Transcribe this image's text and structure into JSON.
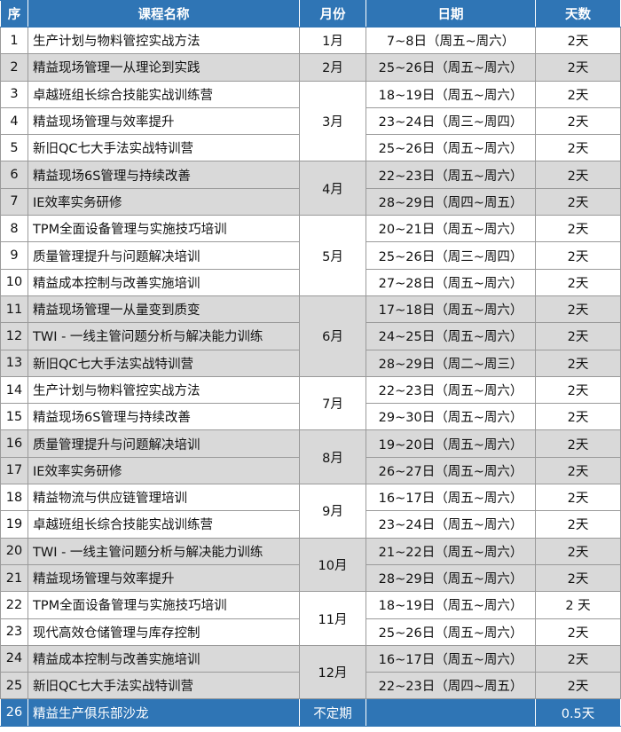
{
  "colors": {
    "header": "#2f75b5",
    "alt_row": "#d9d9d9",
    "highlight_row": "#2f75b5"
  },
  "header": {
    "num": "序",
    "name": "课程名称",
    "month": "月份",
    "date": "日期",
    "days": "天数"
  },
  "months": [
    {
      "label": "1月",
      "span": 1,
      "gray": false
    },
    {
      "label": "2月",
      "span": 1,
      "gray": true
    },
    {
      "label": "3月",
      "span": 3,
      "gray": false
    },
    {
      "label": "4月",
      "span": 2,
      "gray": true
    },
    {
      "label": "5月",
      "span": 3,
      "gray": false
    },
    {
      "label": "6月",
      "span": 3,
      "gray": true
    },
    {
      "label": "7月",
      "span": 2,
      "gray": false
    },
    {
      "label": "8月",
      "span": 2,
      "gray": true
    },
    {
      "label": "9月",
      "span": 2,
      "gray": false
    },
    {
      "label": "10月",
      "span": 2,
      "gray": true
    },
    {
      "label": "11月",
      "span": 2,
      "gray": false
    },
    {
      "label": "12月",
      "span": 2,
      "gray": true
    },
    {
      "label": "不定期",
      "span": 1,
      "gray": false
    }
  ],
  "rows": [
    {
      "num": "1",
      "name": "生产计划与物料管控实战方法",
      "date": "7~8日（周五~周六）",
      "days": "2天"
    },
    {
      "num": "2",
      "name": "精益现场管理一从理论到实践",
      "date": "25~26日（周五~周六）",
      "days": "2天"
    },
    {
      "num": "3",
      "name": "卓越班组长综合技能实战训练营",
      "date": "18~19日（周五~周六）",
      "days": "2天"
    },
    {
      "num": "4",
      "name": "精益现场管理与效率提升",
      "date": "23~24日（周三~周四）",
      "days": "2天"
    },
    {
      "num": "5",
      "name": "新旧QC七大手法实战特训营",
      "date": "25~26日（周五~周六）",
      "days": "2天"
    },
    {
      "num": "6",
      "name": "精益现场6S管理与持续改善",
      "date": "22~23日（周五~周六）",
      "days": "2天"
    },
    {
      "num": "7",
      "name": "IE效率实务研修",
      "date": "28~29日（周四~周五）",
      "days": "2天"
    },
    {
      "num": "8",
      "name": "TPM全面设备管理与实施技巧培训",
      "date": "20~21日（周五~周六）",
      "days": "2天"
    },
    {
      "num": "9",
      "name": "质量管理提升与问题解决培训",
      "date": "25~26日（周三~周四）",
      "days": "2天"
    },
    {
      "num": "10",
      "name": "精益成本控制与改善实施培训",
      "date": "27~28日（周五~周六）",
      "days": "2天"
    },
    {
      "num": "11",
      "name": "精益现场管理一从量变到质变",
      "date": "17~18日（周五~周六）",
      "days": "2天"
    },
    {
      "num": "12",
      "name": "TWI - 一线主管问题分析与解决能力训练",
      "date": "24~25日（周五~周六）",
      "days": "2天"
    },
    {
      "num": "13",
      "name": "新旧QC七大手法实战特训营",
      "date": "28~29日（周二~周三）",
      "days": "2天"
    },
    {
      "num": "14",
      "name": "生产计划与物料管控实战方法",
      "date": "22~23日（周五~周六）",
      "days": "2天"
    },
    {
      "num": "15",
      "name": "精益现场6S管理与持续改善",
      "date": "29~30日（周五~周六）",
      "days": "2天"
    },
    {
      "num": "16",
      "name": "质量管理提升与问题解决培训",
      "date": "19~20日（周五~周六）",
      "days": "2天"
    },
    {
      "num": "17",
      "name": "IE效率实务研修",
      "date": "26~27日（周五~周六）",
      "days": "2天"
    },
    {
      "num": "18",
      "name": "精益物流与供应链管理培训",
      "date": "16~17日（周五~周六）",
      "days": "2天"
    },
    {
      "num": "19",
      "name": "卓越班组长综合技能实战训练营",
      "date": "23~24日（周五~周六）",
      "days": "2天"
    },
    {
      "num": "20",
      "name": "TWI - 一线主管问题分析与解决能力训练",
      "date": "21~22日（周五~周六）",
      "days": "2天"
    },
    {
      "num": "21",
      "name": "精益现场管理与效率提升",
      "date": "28~29日（周五~周六）",
      "days": "2天"
    },
    {
      "num": "22",
      "name": "TPM全面设备管理与实施技巧培训",
      "date": "18~19日（周五~周六）",
      "days": "2 天"
    },
    {
      "num": "23",
      "name": "现代高效仓储管理与库存控制",
      "date": "25~26日（周五~周六）",
      "days": "2天"
    },
    {
      "num": "24",
      "name": "精益成本控制与改善实施培训",
      "date": "16~17日（周五~周六）",
      "days": "2天"
    },
    {
      "num": "25",
      "name": "新旧QC七大手法实战特训营",
      "date": "22~23日（周四~周五）",
      "days": "2天"
    },
    {
      "num": "26",
      "name": "精益生产俱乐部沙龙",
      "date": "",
      "days": "0.5天"
    }
  ]
}
